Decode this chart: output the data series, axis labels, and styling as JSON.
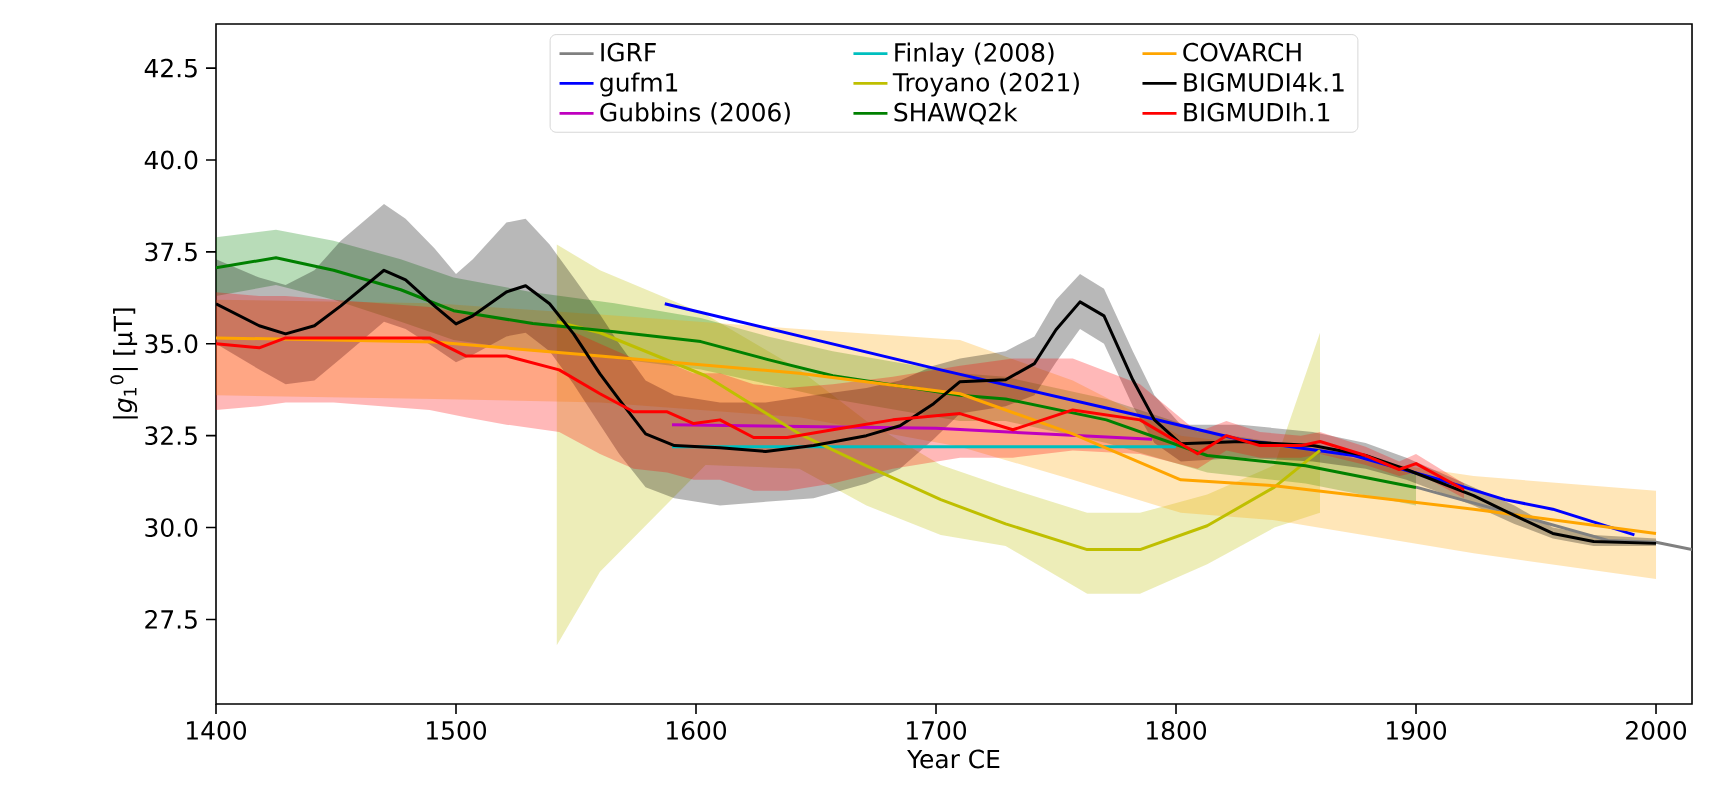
{
  "chart_data": {
    "type": "line",
    "xlabel": "Year CE",
    "ylabel": "|*g*$_{1}$$^{0}$| [µT]",
    "xlim": [
      1400,
      2015
    ],
    "ylim": [
      25.2,
      43.7
    ],
    "xticks": [
      1400,
      1500,
      1600,
      1700,
      1800,
      1900,
      2000
    ],
    "yticks": [
      27.5,
      {
        "value": 30,
        "label": "30.0"
      },
      32.5,
      {
        "value": 35,
        "label": "35.0"
      },
      37.5,
      {
        "value": 40,
        "label": "40.0"
      },
      42.5
    ],
    "grid": false,
    "legend": "top",
    "marker": "none",
    "line_style": "solid",
    "series": [
      {
        "name": "IGRF",
        "color": "#808080",
        "x": [
          1900,
          1950,
          1980,
          2000,
          2015
        ],
        "values": [
          31.1,
          30.2,
          29.65,
          29.6,
          29.4
        ]
      },
      {
        "name": "gufm1",
        "color": "#0000ff",
        "x": [
          1587,
          1702,
          1785,
          1827,
          1874,
          1910,
          1937,
          1957,
          1991
        ],
        "values": [
          36.09,
          34.29,
          33.04,
          32.39,
          31.96,
          31.3,
          30.76,
          30.5,
          29.8
        ]
      },
      {
        "name": "Gubbins (2006)",
        "color": "#bf00bf",
        "x": [
          1590,
          1700,
          1790
        ],
        "values": [
          32.8,
          32.7,
          32.4
        ]
      },
      {
        "name": "Finlay (2008)",
        "color": "#00bfbf",
        "x": [
          1590,
          1800
        ],
        "values": [
          32.2,
          32.2
        ]
      },
      {
        "name": "Troyano (2021)",
        "color": "#bfbf00",
        "x": [
          1542,
          1560,
          1604,
          1643,
          1671,
          1702,
          1729,
          1763,
          1785,
          1813,
          1841,
          1860
        ],
        "values": [
          35.6,
          35.3,
          34.13,
          32.55,
          31.68,
          30.76,
          30.1,
          29.4,
          29.4,
          30.05,
          31.1,
          32.1
        ],
        "lower": [
          26.8,
          28.8,
          31.7,
          31.6,
          30.6,
          29.8,
          29.5,
          28.2,
          28.2,
          29.0,
          30.0,
          30.4
        ],
        "upper": [
          37.7,
          37.0,
          35.8,
          34.3,
          32.9,
          31.7,
          31.1,
          30.4,
          30.4,
          30.9,
          31.7,
          35.3
        ]
      },
      {
        "name": "SHAWQ2k",
        "color": "#008000",
        "x": [
          1400,
          1425,
          1449,
          1477,
          1499,
          1532,
          1566,
          1602,
          1630,
          1657,
          1710,
          1729,
          1771,
          1813,
          1854,
          1900
        ],
        "values": [
          37.07,
          37.34,
          37.0,
          36.47,
          35.9,
          35.55,
          35.33,
          35.06,
          34.57,
          34.13,
          33.6,
          33.5,
          32.93,
          31.96,
          31.68,
          31.09
        ],
        "lower": [
          36.3,
          36.6,
          36.2,
          35.6,
          35.1,
          34.8,
          34.6,
          34.3,
          33.9,
          33.5,
          32.9,
          32.9,
          32.3,
          31.5,
          31.2,
          30.6
        ],
        "upper": [
          37.9,
          38.1,
          37.8,
          37.3,
          36.8,
          36.4,
          36.1,
          35.7,
          35.2,
          34.8,
          34.2,
          34.1,
          33.5,
          32.6,
          32.2,
          31.5
        ]
      },
      {
        "name": "COVARCH",
        "color": "#ffa500",
        "x": [
          1400,
          1491,
          1560,
          1643,
          1710,
          1757,
          1802,
          1841,
          1924,
          2000
        ],
        "values": [
          35.16,
          35.05,
          34.67,
          34.2,
          33.64,
          32.55,
          31.3,
          31.14,
          30.5,
          29.84
        ],
        "lower": [
          33.6,
          33.5,
          33.4,
          33.0,
          32.2,
          31.3,
          30.4,
          30.2,
          29.3,
          28.6
        ],
        "upper": [
          36.2,
          36.1,
          35.8,
          35.4,
          35.1,
          34.0,
          32.5,
          32.2,
          31.4,
          31.0
        ]
      },
      {
        "name": "BIGMUDI4k.1",
        "color": "#000000",
        "x": [
          1400,
          1418,
          1429,
          1441,
          1452,
          1470,
          1479,
          1491,
          1500,
          1507,
          1521,
          1529,
          1539,
          1549,
          1560,
          1568,
          1579,
          1591,
          1610,
          1629,
          1649,
          1671,
          1685,
          1699,
          1710,
          1729,
          1741,
          1750,
          1760,
          1770,
          1782,
          1791,
          1802,
          1827,
          1857,
          1879,
          1896,
          1924,
          1941,
          1957,
          1974,
          2000
        ],
        "values": [
          36.09,
          35.49,
          35.27,
          35.49,
          36.03,
          37.0,
          36.74,
          36.03,
          35.54,
          35.76,
          36.41,
          36.58,
          36.09,
          35.27,
          34.18,
          33.48,
          32.55,
          32.23,
          32.17,
          32.07,
          32.23,
          32.5,
          32.77,
          33.37,
          33.97,
          34.02,
          34.46,
          35.38,
          36.14,
          35.76,
          34.02,
          32.93,
          32.28,
          32.34,
          32.23,
          31.96,
          31.58,
          30.87,
          30.33,
          29.84,
          29.62,
          29.57
        ],
        "lower": [
          35.0,
          34.3,
          33.9,
          34.0,
          34.6,
          35.6,
          35.4,
          34.9,
          34.5,
          34.7,
          35.2,
          35.3,
          34.8,
          33.9,
          32.8,
          32.0,
          31.1,
          30.8,
          30.6,
          30.7,
          30.8,
          31.2,
          31.6,
          32.4,
          33.1,
          33.3,
          33.6,
          34.5,
          35.4,
          35.0,
          33.3,
          32.3,
          31.8,
          31.9,
          31.8,
          31.6,
          31.3,
          30.6,
          30.1,
          29.7,
          29.5,
          29.5
        ],
        "upper": [
          37.3,
          36.8,
          36.6,
          37.0,
          37.8,
          38.8,
          38.4,
          37.6,
          36.9,
          37.3,
          38.3,
          38.4,
          37.7,
          36.8,
          35.8,
          35.0,
          34.0,
          33.6,
          33.4,
          33.4,
          33.6,
          33.8,
          34.0,
          34.4,
          34.6,
          34.8,
          35.2,
          36.2,
          36.9,
          36.5,
          34.8,
          33.6,
          32.8,
          32.8,
          32.6,
          32.3,
          31.9,
          31.1,
          30.6,
          30.0,
          29.8,
          29.7
        ]
      },
      {
        "name": "BIGMUDIh.1",
        "color": "#ff0000",
        "x": [
          1400,
          1418,
          1429,
          1449,
          1489,
          1504,
          1521,
          1543,
          1560,
          1574,
          1588,
          1599,
          1610,
          1624,
          1638,
          1657,
          1682,
          1710,
          1732,
          1757,
          1785,
          1809,
          1821,
          1835,
          1852,
          1860,
          1879,
          1893,
          1900,
          1920
        ],
        "values": [
          35.0,
          34.89,
          35.16,
          35.16,
          35.16,
          34.67,
          34.67,
          34.29,
          33.64,
          33.15,
          33.15,
          32.83,
          32.93,
          32.45,
          32.45,
          32.66,
          32.93,
          33.1,
          32.66,
          33.2,
          32.93,
          32.01,
          32.5,
          32.23,
          32.23,
          32.34,
          31.96,
          31.58,
          31.74,
          31.03
        ],
        "lower": [
          33.2,
          33.3,
          33.4,
          33.4,
          33.2,
          33.0,
          32.8,
          32.6,
          32.0,
          31.6,
          31.5,
          31.3,
          31.3,
          31.0,
          31.0,
          31.2,
          31.6,
          31.9,
          31.9,
          32.1,
          32.0,
          31.6,
          32.1,
          31.9,
          31.9,
          32.0,
          31.7,
          31.4,
          31.5,
          30.8
        ],
        "upper": [
          36.4,
          36.3,
          36.3,
          36.2,
          36.0,
          35.8,
          35.7,
          35.5,
          35.0,
          34.6,
          34.5,
          34.2,
          34.2,
          33.9,
          33.8,
          33.9,
          34.1,
          34.4,
          34.6,
          34.6,
          33.9,
          32.6,
          32.9,
          32.6,
          32.5,
          32.6,
          32.2,
          31.8,
          32.0,
          31.2
        ]
      }
    ]
  }
}
